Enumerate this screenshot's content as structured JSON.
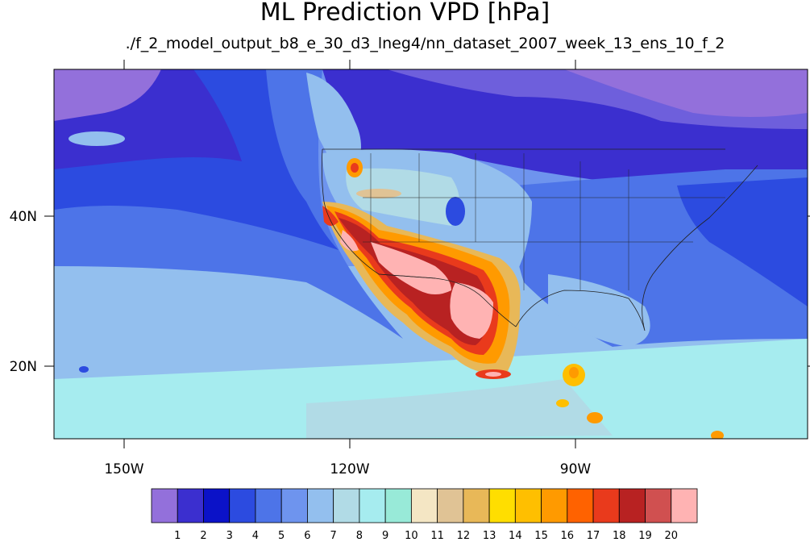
{
  "title": "ML Prediction VPD [hPa]",
  "subtitle": "./f_2_model_output_b8_e_30_d3_lneg4/nn_dataset_2007_week_13_ens_10_f_2",
  "axes": {
    "lon_labels": [
      "150W",
      "120W",
      "90W"
    ],
    "lat_labels": [
      "40N",
      "20N"
    ]
  },
  "colorbar": {
    "labels": [
      "1",
      "2",
      "3",
      "4",
      "5",
      "6",
      "7",
      "8",
      "9",
      "10",
      "11",
      "12",
      "13",
      "14",
      "15",
      "16",
      "17",
      "18",
      "19",
      "20"
    ],
    "colors": [
      "#9370db",
      "#3b2fcf",
      "#0b12c8",
      "#2c4be0",
      "#4d74e8",
      "#6e94ee",
      "#93bfee",
      "#b1dbe6",
      "#a6ecef",
      "#98ead8",
      "#f4e6c4",
      "#e0c395",
      "#e8b858",
      "#ffde00",
      "#ffbf00",
      "#ff9a00",
      "#ff6200",
      "#e93a1c",
      "#b82222",
      "#d05050",
      "#ffb3b3"
    ]
  },
  "colors": {
    "ocean_deep": "#2c4be0",
    "ocean_mid": "#4d74e8",
    "ocean_light": "#6e94ee",
    "ocean_pale": "#93bfee",
    "tropical": "#a6ecef",
    "north_land": "#9370db"
  }
}
